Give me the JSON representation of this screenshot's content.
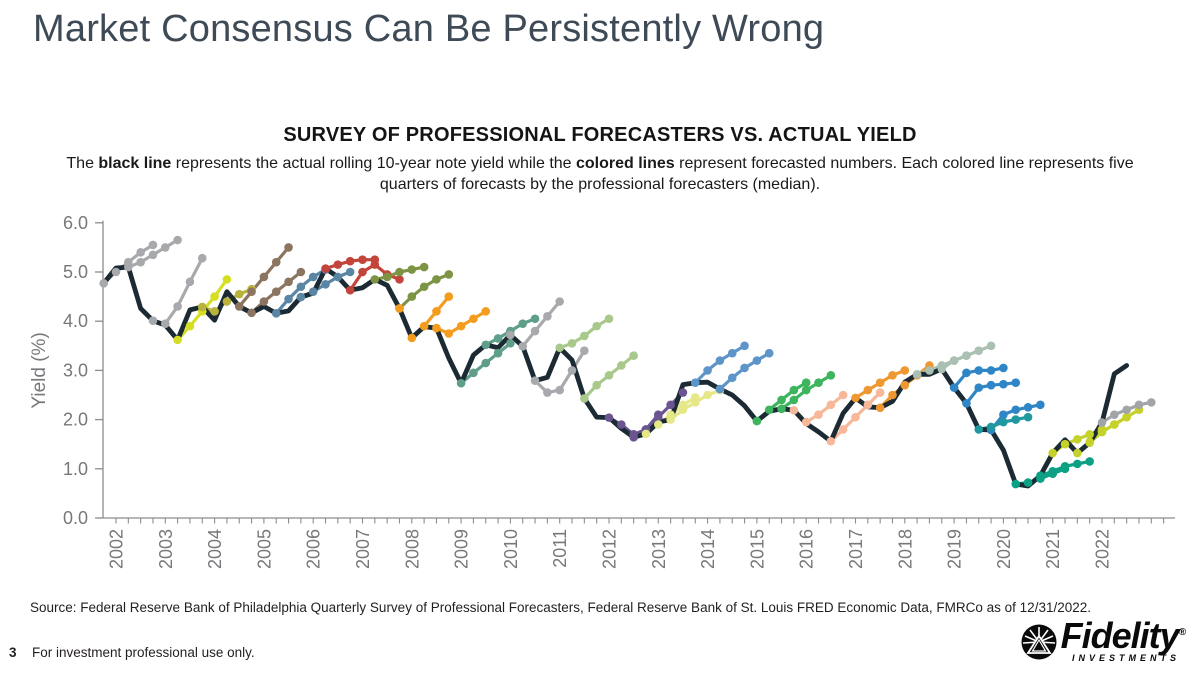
{
  "slide": {
    "title": "Market Consensus Can Be Persistently Wrong",
    "source": "Source: Federal Reserve Bank of Philadelphia Quarterly Survey of Professional Forecasters, Federal Reserve Bank of St. Louis FRED Economic Data, FMRCo as of 12/31/2022.",
    "page_number": "3",
    "disclaimer": "For investment professional use only."
  },
  "logo": {
    "brand": "Fidelity",
    "registered": "®",
    "sub": "INVESTMENTS"
  },
  "chart": {
    "title": "SURVEY OF PROFESSIONAL FORECASTERS VS. ACTUAL YIELD",
    "subtitle_segments": [
      {
        "text": "The ",
        "bold": false
      },
      {
        "text": "black line",
        "bold": true
      },
      {
        "text": " represents the actual rolling 10-year note yield while the ",
        "bold": false
      },
      {
        "text": "colored lines",
        "bold": true
      },
      {
        "text": " represent forecasted numbers. Each colored line represents five quarters of forecasts by the professional forecasters (median).",
        "bold": false
      }
    ]
  },
  "chart_data": {
    "type": "line",
    "title": "SURVEY OF PROFESSIONAL FORECASTERS VS. ACTUAL YIELD",
    "xlabel": "",
    "ylabel": "Yield (%)",
    "ylim": [
      0,
      6
    ],
    "grid": false,
    "legend": "none",
    "y_ticks": [
      "6.0",
      "5.0",
      "4.0",
      "3.0",
      "2.0",
      "1.0",
      "0.0"
    ],
    "x_ticks": [
      "2002",
      "2003",
      "2004",
      "2005",
      "2006",
      "2007",
      "2008",
      "2009",
      "2010",
      "2011",
      "2012",
      "2013",
      "2014",
      "2015",
      "2016",
      "2017",
      "2018",
      "2019",
      "2020",
      "2021",
      "2022"
    ],
    "palette": {
      "ink": "#1b2a33",
      "gray": "#a7a9ac",
      "yellowgreen": "#d6de23",
      "darkyellow": "#b9b33e",
      "brown": "#8c7560",
      "slateblue": "#5886a3",
      "red": "#c2443a",
      "olive": "#7d9444",
      "orange": "#f39c1d",
      "mutedteal": "#5f9e8a",
      "lightgreen": "#a8c98b",
      "purple": "#6a5591",
      "paleyellow": "#e6e888",
      "blue": "#5e95c9",
      "green": "#3eb45f",
      "salmon": "#f6b899",
      "orange2": "#ef9730",
      "sage": "#a9c0b2",
      "brightblue": "#2e86c6",
      "teal": "#1f98a0",
      "tealgreen": "#0ca184",
      "yellowgreen2": "#c5d22b",
      "gray2": "#a2a5a8"
    },
    "actual": {
      "name": "Actual rolling 10-year note yield",
      "color": "ink",
      "start": 2001.75,
      "step": 0.25,
      "values": [
        4.77,
        5.08,
        5.1,
        4.26,
        4.01,
        3.92,
        3.62,
        4.23,
        4.29,
        4.02,
        4.6,
        4.3,
        4.17,
        4.3,
        4.16,
        4.21,
        4.49,
        4.57,
        5.07,
        4.9,
        4.63,
        4.68,
        4.85,
        4.73,
        4.26,
        3.66,
        3.89,
        3.86,
        3.25,
        2.74,
        3.31,
        3.52,
        3.46,
        3.72,
        3.49,
        2.79,
        2.86,
        3.46,
        3.21,
        2.43,
        2.05,
        2.04,
        1.82,
        1.64,
        1.71,
        1.95,
        2.0,
        2.71,
        2.75,
        2.76,
        2.62,
        2.5,
        2.28,
        1.97,
        2.17,
        2.22,
        2.19,
        1.92,
        1.75,
        1.56,
        2.13,
        2.44,
        2.26,
        2.24,
        2.37,
        2.76,
        2.92,
        2.92,
        3.03,
        2.65,
        2.33,
        1.8,
        1.79,
        1.38,
        0.69,
        0.65,
        0.86,
        1.32,
        1.59,
        1.32,
        1.53,
        1.94,
        2.93,
        3.1
      ]
    },
    "forecasts": [
      {
        "start": 2001.75,
        "color": "gray",
        "values": [
          4.77,
          5.0,
          5.2,
          5.4,
          5.55
        ]
      },
      {
        "start": 2002.25,
        "color": "gray",
        "values": [
          5.1,
          5.2,
          5.35,
          5.5,
          5.65
        ]
      },
      {
        "start": 2002.75,
        "color": "gray",
        "values": [
          4.01,
          3.95,
          4.3,
          4.8,
          5.28
        ]
      },
      {
        "start": 2003.25,
        "color": "yellowgreen",
        "values": [
          3.62,
          3.9,
          4.2,
          4.5,
          4.85
        ]
      },
      {
        "start": 2003.75,
        "color": "darkyellow",
        "values": [
          4.29,
          4.2,
          4.4,
          4.55,
          4.65
        ]
      },
      {
        "start": 2004.5,
        "color": "brown",
        "values": [
          4.3,
          4.6,
          4.9,
          5.2,
          5.5
        ]
      },
      {
        "start": 2004.75,
        "color": "brown",
        "values": [
          4.17,
          4.4,
          4.6,
          4.8,
          5.0
        ]
      },
      {
        "start": 2005.25,
        "color": "slateblue",
        "values": [
          4.16,
          4.45,
          4.7,
          4.9,
          5.05
        ]
      },
      {
        "start": 2005.75,
        "color": "slateblue",
        "values": [
          4.49,
          4.6,
          4.75,
          4.9,
          5.0
        ]
      },
      {
        "start": 2006.25,
        "color": "red",
        "values": [
          5.07,
          5.15,
          5.22,
          5.25,
          5.25
        ]
      },
      {
        "start": 2006.75,
        "color": "red",
        "values": [
          4.63,
          5.0,
          5.15,
          4.95,
          4.85
        ]
      },
      {
        "start": 2007.25,
        "color": "olive",
        "values": [
          4.85,
          4.9,
          5.0,
          5.05,
          5.1
        ]
      },
      {
        "start": 2007.75,
        "color": "olive",
        "values": [
          4.26,
          4.5,
          4.7,
          4.85,
          4.95
        ]
      },
      {
        "start": 2007.75,
        "color": "orange",
        "values": [
          4.26,
          3.66,
          3.9,
          4.2,
          4.5
        ]
      },
      {
        "start": 2008.5,
        "color": "orange",
        "values": [
          3.86,
          3.75,
          3.9,
          4.05,
          4.2
        ]
      },
      {
        "start": 2009.0,
        "color": "mutedteal",
        "values": [
          2.74,
          2.95,
          3.15,
          3.35,
          3.55
        ]
      },
      {
        "start": 2009.5,
        "color": "mutedteal",
        "values": [
          3.52,
          3.65,
          3.8,
          3.95,
          4.05
        ]
      },
      {
        "start": 2010.0,
        "color": "gray",
        "values": [
          3.72,
          3.49,
          3.8,
          4.1,
          4.4
        ]
      },
      {
        "start": 2010.5,
        "color": "gray",
        "values": [
          2.79,
          2.55,
          2.6,
          3.0,
          3.4
        ]
      },
      {
        "start": 2011.0,
        "color": "lightgreen",
        "values": [
          3.46,
          3.55,
          3.7,
          3.9,
          4.05
        ]
      },
      {
        "start": 2011.5,
        "color": "lightgreen",
        "values": [
          2.43,
          2.7,
          2.9,
          3.1,
          3.3
        ]
      },
      {
        "start": 2012.0,
        "color": "purple",
        "values": [
          2.04,
          1.9,
          1.7,
          1.8,
          2.1
        ]
      },
      {
        "start": 2012.5,
        "color": "purple",
        "values": [
          1.64,
          1.8,
          2.05,
          2.3,
          2.55
        ]
      },
      {
        "start": 2012.75,
        "color": "paleyellow",
        "values": [
          1.71,
          1.9,
          2.1,
          2.3,
          2.45
        ]
      },
      {
        "start": 2013.25,
        "color": "paleyellow",
        "values": [
          2.0,
          2.2,
          2.35,
          2.5,
          2.6
        ]
      },
      {
        "start": 2013.75,
        "color": "blue",
        "values": [
          2.75,
          3.0,
          3.2,
          3.35,
          3.5
        ]
      },
      {
        "start": 2014.25,
        "color": "blue",
        "values": [
          2.62,
          2.85,
          3.05,
          3.2,
          3.35
        ]
      },
      {
        "start": 2015.0,
        "color": "green",
        "values": [
          1.97,
          2.2,
          2.4,
          2.6,
          2.75
        ]
      },
      {
        "start": 2015.5,
        "color": "green",
        "values": [
          2.22,
          2.4,
          2.6,
          2.75,
          2.9
        ]
      },
      {
        "start": 2015.75,
        "color": "salmon",
        "values": [
          2.19,
          1.95,
          2.1,
          2.3,
          2.5
        ]
      },
      {
        "start": 2016.5,
        "color": "salmon",
        "values": [
          1.56,
          1.8,
          2.05,
          2.3,
          2.55
        ]
      },
      {
        "start": 2017.0,
        "color": "orange2",
        "values": [
          2.44,
          2.6,
          2.75,
          2.9,
          3.0
        ]
      },
      {
        "start": 2017.5,
        "color": "orange2",
        "values": [
          2.24,
          2.5,
          2.7,
          2.9,
          3.1
        ]
      },
      {
        "start": 2018.25,
        "color": "sage",
        "values": [
          2.92,
          3.0,
          3.1,
          3.2,
          3.3
        ]
      },
      {
        "start": 2018.75,
        "color": "sage",
        "values": [
          3.03,
          3.2,
          3.3,
          3.4,
          3.5
        ]
      },
      {
        "start": 2019.0,
        "color": "brightblue",
        "values": [
          2.65,
          2.95,
          3.0,
          3.0,
          3.05
        ]
      },
      {
        "start": 2019.25,
        "color": "brightblue",
        "values": [
          2.33,
          2.65,
          2.7,
          2.72,
          2.75
        ]
      },
      {
        "start": 2019.75,
        "color": "brightblue",
        "values": [
          1.79,
          2.1,
          2.2,
          2.25,
          2.3
        ]
      },
      {
        "start": 2019.5,
        "color": "teal",
        "values": [
          1.8,
          1.85,
          1.95,
          2.0,
          2.05
        ]
      },
      {
        "start": 2020.25,
        "color": "tealgreen",
        "values": [
          0.69,
          0.72,
          0.8,
          0.9,
          1.0
        ]
      },
      {
        "start": 2020.75,
        "color": "tealgreen",
        "values": [
          0.86,
          0.95,
          1.05,
          1.1,
          1.15
        ]
      },
      {
        "start": 2021.0,
        "color": "yellowgreen2",
        "values": [
          1.32,
          1.5,
          1.6,
          1.7,
          1.8
        ]
      },
      {
        "start": 2021.5,
        "color": "yellowgreen2",
        "values": [
          1.32,
          1.55,
          1.75,
          1.9,
          2.05
        ]
      },
      {
        "start": 2021.75,
        "color": "yellowgreen2",
        "values": [
          1.53,
          1.75,
          1.9,
          2.05,
          2.2
        ]
      },
      {
        "start": 2022.0,
        "color": "gray2",
        "values": [
          1.94,
          2.1,
          2.2,
          2.3,
          2.35
        ]
      }
    ]
  }
}
